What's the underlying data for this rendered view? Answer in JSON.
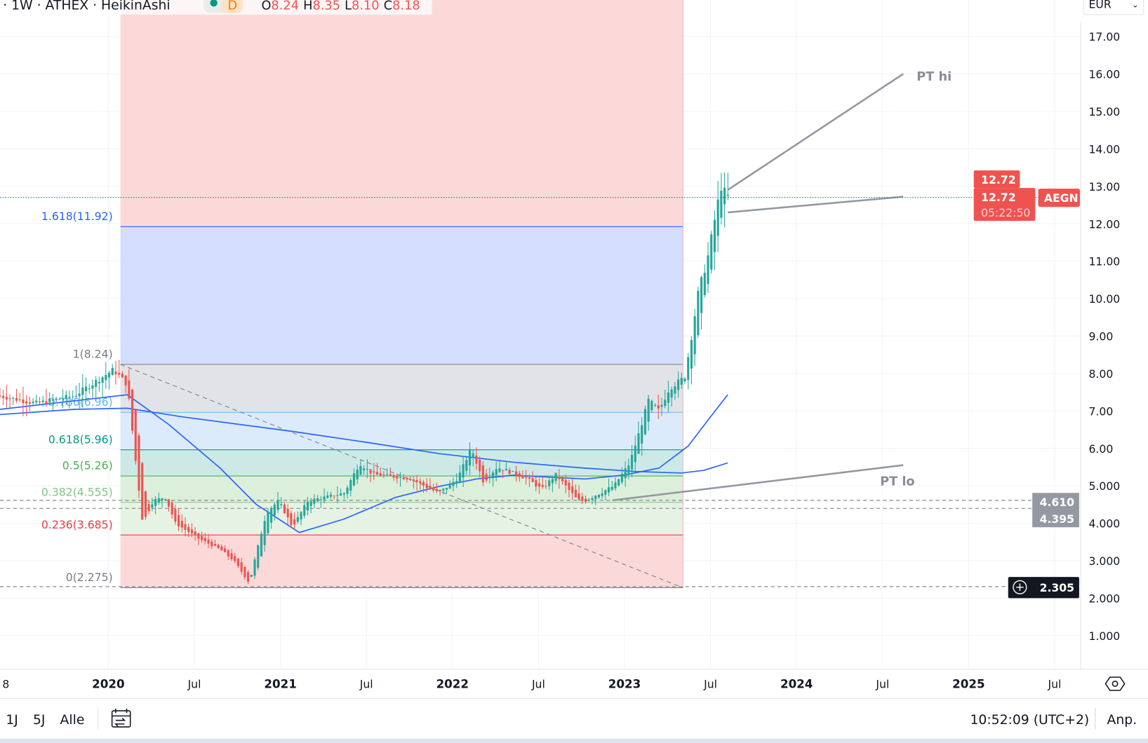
{
  "legend": {
    "title": "· 1W · ATHEX · HeikinAshi",
    "badge": "D",
    "o_label": "O",
    "o": "8.24",
    "h_label": "H",
    "h": "8.35",
    "l_label": "L",
    "l": "8.10",
    "c_label": "C",
    "c": "8.18"
  },
  "currency": "EUR",
  "symbol_tag": "AEGN",
  "last_price": "12.72",
  "last_price_2": "12.72",
  "countdown": "05:22:50",
  "hline_labels": [
    "4.610",
    "4.395",
    "2.305"
  ],
  "annotations": {
    "pt_hi": "PT hi",
    "pt_lo": "PT lo"
  },
  "bottom": {
    "ranges": [
      "1J",
      "5J",
      "Alle"
    ],
    "clock": "10:52:09 (UTC+2)",
    "adjust": "Anp."
  },
  "colors": {
    "up": "#26a69a",
    "down": "#ef5350",
    "ma": "#2962ff",
    "tag": "#ef5350"
  },
  "chart_data": {
    "type": "candlestick",
    "interval": "1W",
    "y_ticks": [
      "17.00",
      "16.00",
      "15.00",
      "14.00",
      "13.00",
      "12.00",
      "11.00",
      "10.00",
      "9.00",
      "8.00",
      "7.00",
      "6.00",
      "5.000",
      "4.000",
      "3.000",
      "2.000",
      "1.000"
    ],
    "ylim": [
      0.1,
      17.9
    ],
    "x_ticks": [
      {
        "label": "8",
        "year": 2019.32,
        "bold": false
      },
      {
        "label": "2020",
        "year": 2020.0,
        "bold": true
      },
      {
        "label": "Jul",
        "year": 2020.5,
        "bold": false
      },
      {
        "label": "2021",
        "year": 2021.0,
        "bold": true
      },
      {
        "label": "Jul",
        "year": 2021.5,
        "bold": false
      },
      {
        "label": "2022",
        "year": 2022.0,
        "bold": true
      },
      {
        "label": "Jul",
        "year": 2022.5,
        "bold": false
      },
      {
        "label": "2023",
        "year": 2023.0,
        "bold": true
      },
      {
        "label": "Jul",
        "year": 2023.5,
        "bold": false
      },
      {
        "label": "2024",
        "year": 2024.0,
        "bold": true
      },
      {
        "label": "Jul",
        "year": 2024.5,
        "bold": false
      },
      {
        "label": "2025",
        "year": 2025.0,
        "bold": true
      },
      {
        "label": "Jul",
        "year": 2025.5,
        "bold": false
      }
    ],
    "price_path": [
      [
        2019.37,
        7.4
      ],
      [
        2019.58,
        7.2
      ],
      [
        2019.8,
        7.4
      ],
      [
        2020.03,
        8.1
      ],
      [
        2020.11,
        7.7
      ],
      [
        2020.16,
        5.6
      ],
      [
        2020.2,
        4.0
      ],
      [
        2020.26,
        4.6
      ],
      [
        2020.33,
        4.7
      ],
      [
        2020.39,
        4.0
      ],
      [
        2020.52,
        3.6
      ],
      [
        2020.65,
        3.3
      ],
      [
        2020.73,
        3.0
      ],
      [
        2020.82,
        2.4
      ],
      [
        2020.86,
        3.2
      ],
      [
        2020.92,
        4.3
      ],
      [
        2020.99,
        4.6
      ],
      [
        2021.07,
        3.9
      ],
      [
        2021.16,
        4.6
      ],
      [
        2021.37,
        4.8
      ],
      [
        2021.46,
        5.6
      ],
      [
        2021.54,
        5.3
      ],
      [
        2021.75,
        5.2
      ],
      [
        2021.92,
        4.8
      ],
      [
        2022.03,
        5.2
      ],
      [
        2022.11,
        6.0
      ],
      [
        2022.18,
        5.1
      ],
      [
        2022.26,
        5.5
      ],
      [
        2022.43,
        5.2
      ],
      [
        2022.52,
        4.9
      ],
      [
        2022.6,
        5.3
      ],
      [
        2022.73,
        4.6
      ],
      [
        2022.77,
        4.6
      ],
      [
        2022.94,
        5.0
      ],
      [
        2023.03,
        5.6
      ],
      [
        2023.09,
        6.5
      ],
      [
        2023.14,
        7.3
      ],
      [
        2023.2,
        7.0
      ],
      [
        2023.26,
        7.6
      ],
      [
        2023.35,
        7.9
      ],
      [
        2023.39,
        9.0
      ],
      [
        2023.43,
        10.2
      ],
      [
        2023.48,
        11.0
      ],
      [
        2023.52,
        12.0
      ],
      [
        2023.56,
        13.0
      ],
      [
        2023.6,
        12.72
      ]
    ],
    "ma_fast": [
      [
        2019.37,
        7.04
      ],
      [
        2020.11,
        7.43
      ],
      [
        2020.35,
        6.64
      ],
      [
        2020.65,
        5.47
      ],
      [
        2020.86,
        4.5
      ],
      [
        2021.11,
        3.75
      ],
      [
        2021.37,
        4.11
      ],
      [
        2021.67,
        4.69
      ],
      [
        2021.92,
        4.98
      ],
      [
        2022.14,
        5.18
      ],
      [
        2022.35,
        5.28
      ],
      [
        2022.77,
        5.18
      ],
      [
        2022.99,
        5.28
      ],
      [
        2023.2,
        5.47
      ],
      [
        2023.37,
        6.06
      ],
      [
        2023.5,
        6.84
      ],
      [
        2023.6,
        7.43
      ]
    ],
    "ma_slow": [
      [
        2019.37,
        6.9
      ],
      [
        2019.8,
        7.04
      ],
      [
        2020.11,
        7.07
      ],
      [
        2020.43,
        6.84
      ],
      [
        2021.07,
        6.45
      ],
      [
        2021.5,
        6.16
      ],
      [
        2021.92,
        5.86
      ],
      [
        2022.35,
        5.63
      ],
      [
        2022.77,
        5.47
      ],
      [
        2023.07,
        5.38
      ],
      [
        2023.33,
        5.34
      ],
      [
        2023.46,
        5.41
      ],
      [
        2023.6,
        5.61
      ]
    ],
    "fib": {
      "start_year": 2020.07,
      "end_year": 2023.34,
      "levels": [
        {
          "ratio": "1.618",
          "price": 11.92,
          "label": "1.618(11.92)",
          "color": "#2962ff",
          "fill": "#d3defc"
        },
        {
          "ratio": "1",
          "price": 8.24,
          "label": "1(8.24)",
          "color": "#787b86",
          "fill": "#e2e3e6"
        },
        {
          "ratio": "0.786",
          "price": 6.96,
          "label": "0.786(6.96)",
          "color": "#64b5f6",
          "fill": "#dcebfb"
        },
        {
          "ratio": "0.618",
          "price": 5.96,
          "label": "0.618(5.96)",
          "color": "#089981",
          "fill": "#cde9e6"
        },
        {
          "ratio": "0.5",
          "price": 5.26,
          "label": "0.5(5.26)",
          "color": "#4caf50",
          "fill": "#dcefdb"
        },
        {
          "ratio": "0.382",
          "price": 4.555,
          "label": "0.382(4.555)",
          "color": "#81c784",
          "fill": "#e6f3e4"
        },
        {
          "ratio": "0.236",
          "price": 3.685,
          "label": "0.236(3.685)",
          "color": "#f23645",
          "fill": "#fcd9d9"
        },
        {
          "ratio": "0",
          "price": 2.275,
          "label": "0(2.275)",
          "color": "#787b86",
          "fill": "#fcd9d9"
        }
      ],
      "top_fill": "#fcd9d9"
    },
    "hlines": [
      4.61,
      4.395,
      2.305
    ],
    "current_price": 12.72,
    "trendlines": [
      {
        "name": "pt-hi",
        "from": [
          2023.6,
          12.9
        ],
        "to": [
          2024.62,
          16.0
        ]
      },
      {
        "name": "pt-mid",
        "from": [
          2023.6,
          12.3
        ],
        "to": [
          2024.62,
          12.72
        ]
      },
      {
        "name": "pt-lo",
        "from": [
          2022.93,
          4.61
        ],
        "to": [
          2024.62,
          5.55
        ]
      }
    ],
    "fib_trend": {
      "from": [
        2020.07,
        8.24
      ],
      "to": [
        2023.34,
        2.275
      ]
    }
  }
}
